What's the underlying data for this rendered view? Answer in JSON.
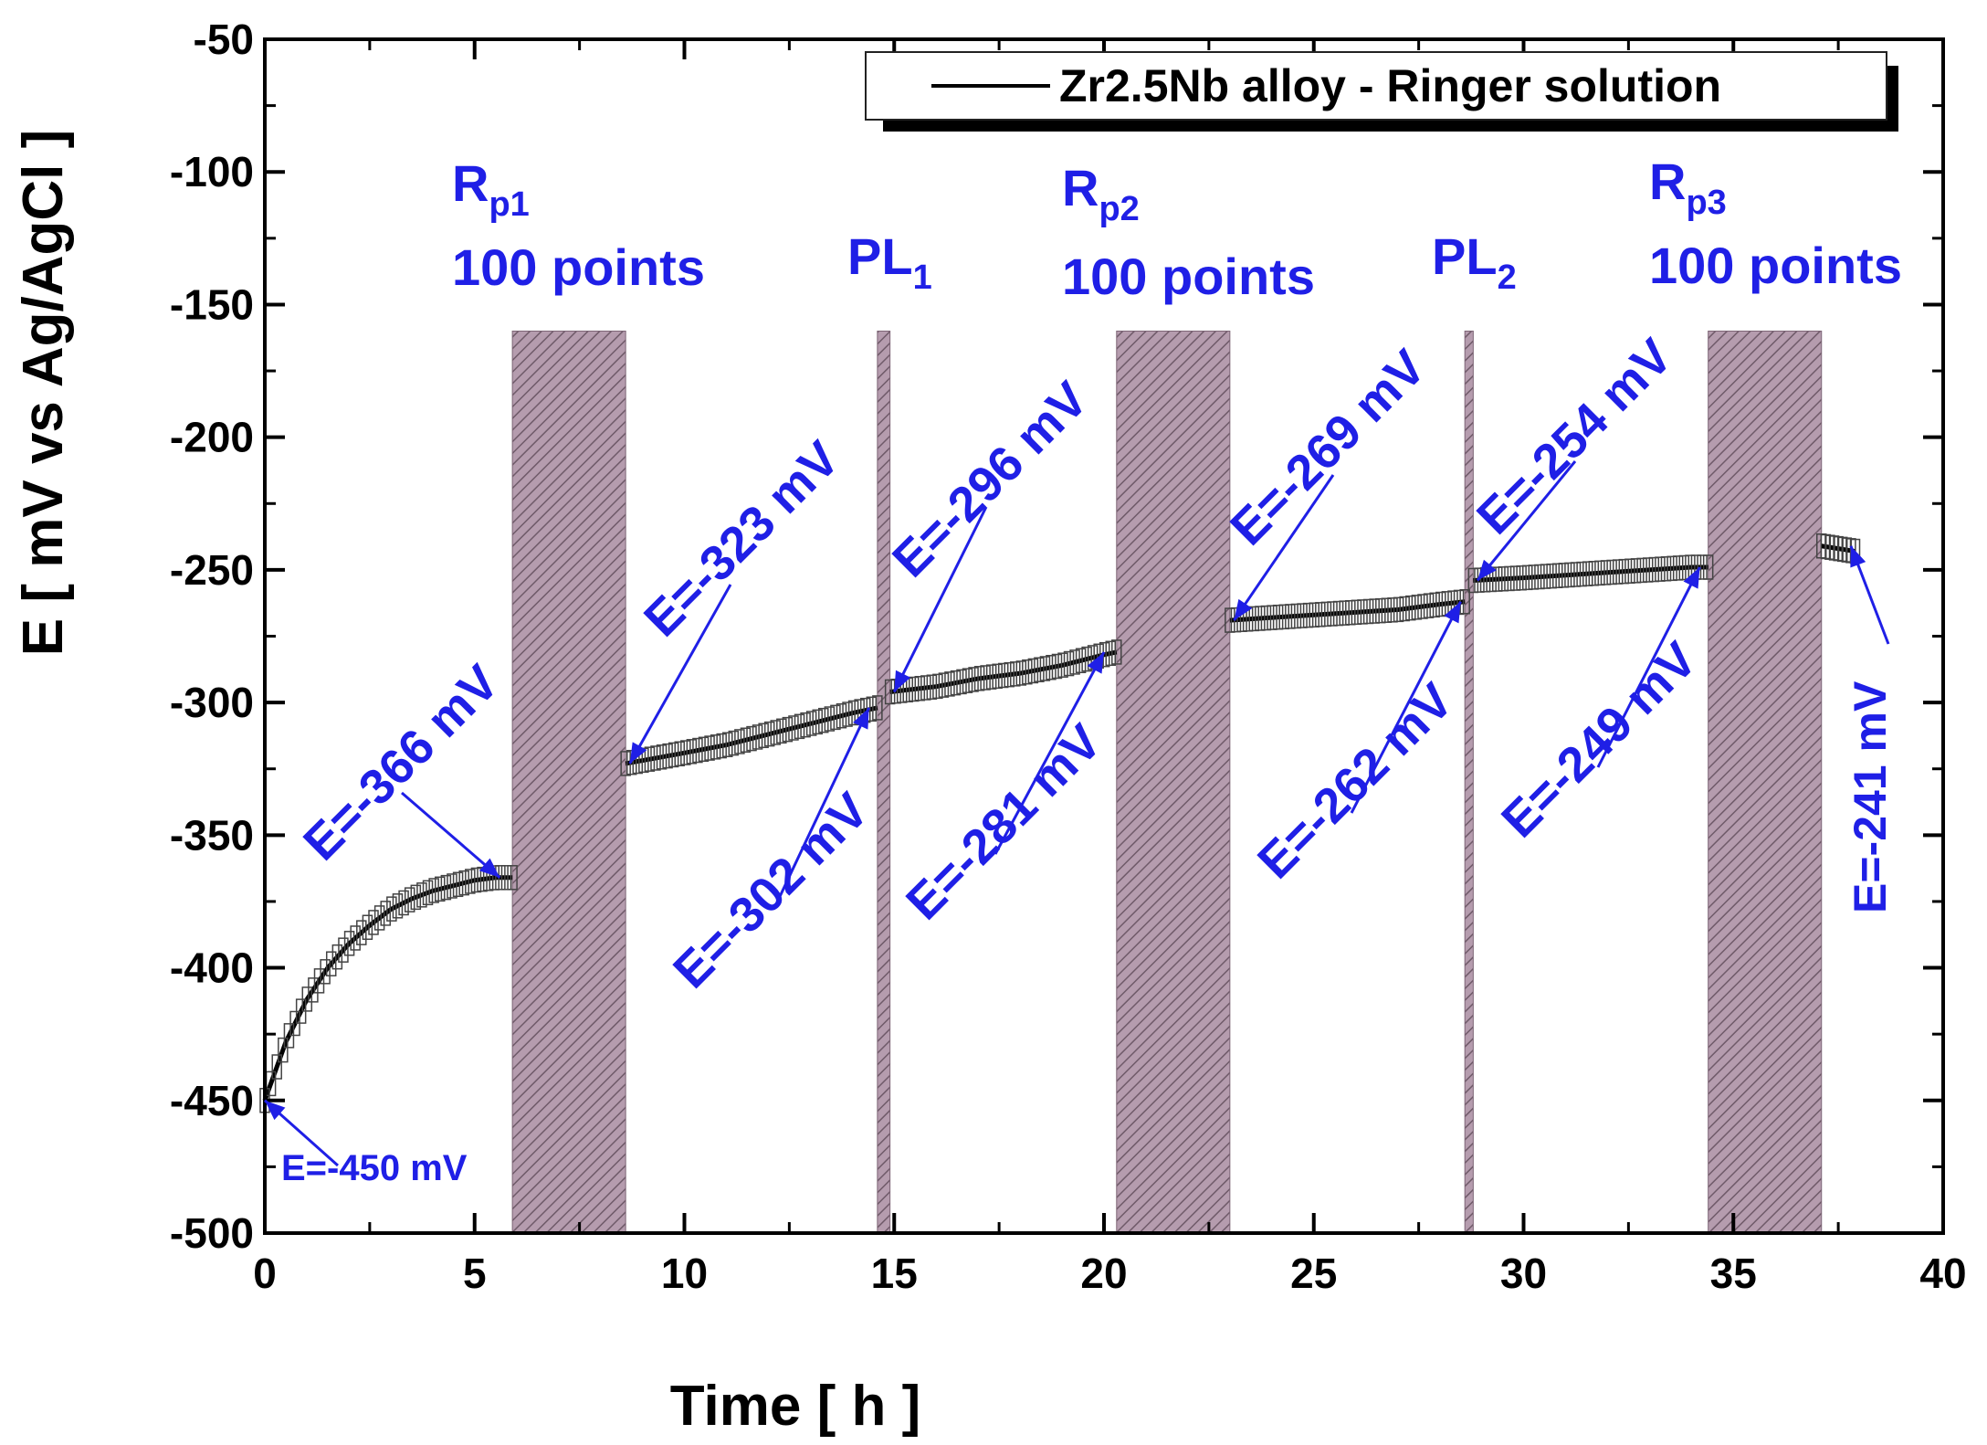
{
  "chart_data": {
    "type": "line",
    "title": "",
    "xlabel": "Time [ h ]",
    "ylabel": "E [ mV vs Ag/AgCl ]",
    "xlim": [
      0,
      40
    ],
    "ylim": [
      -500,
      -50
    ],
    "xticks": [
      0,
      5,
      10,
      15,
      20,
      25,
      30,
      35,
      40
    ],
    "yticks": [
      -50,
      -100,
      -150,
      -200,
      -250,
      -300,
      -350,
      -400,
      -450,
      -500
    ],
    "legend": {
      "label": "Zr2.5Nb alloy - Ringer solution",
      "position": "top-right"
    },
    "series": [
      {
        "name": "Zr2.5Nb alloy - Ringer solution",
        "segments": [
          {
            "x": [
              0,
              0.5,
              1,
              1.5,
              2,
              2.5,
              3,
              3.5,
              4,
              4.5,
              5,
              5.5,
              5.9
            ],
            "y": [
              -450,
              -428,
              -412,
              -400,
              -391,
              -384,
              -378,
              -374,
              -371,
              -369,
              -367,
              -366,
              -366
            ]
          },
          {
            "x": [
              8.6,
              10,
              11,
              12,
              13,
              14,
              14.6
            ],
            "y": [
              -323,
              -319,
              -316,
              -312,
              -308,
              -304,
              -302
            ]
          },
          {
            "x": [
              14.9,
              16,
              17,
              18,
              19,
              20,
              20.3
            ],
            "y": [
              -296,
              -294,
              -291,
              -289,
              -286,
              -282,
              -281
            ]
          },
          {
            "x": [
              23,
              24,
              25,
              26,
              27,
              28,
              28.6
            ],
            "y": [
              -269,
              -268,
              -267,
              -266,
              -265,
              -263,
              -262
            ]
          },
          {
            "x": [
              28.8,
              30,
              31,
              32,
              33,
              34,
              34.4
            ],
            "y": [
              -254,
              -253,
              -252,
              -251,
              -250,
              -249,
              -249
            ]
          },
          {
            "x": [
              37.1,
              37.5,
              37.9
            ],
            "y": [
              -241,
              -242,
              -243
            ]
          }
        ]
      }
    ],
    "measurement_blocks": [
      {
        "label": "R",
        "sub": "p1",
        "detail": "100 points",
        "x_start": 5.9,
        "x_end": 8.6
      },
      {
        "label": "PL",
        "sub": "1",
        "detail": "",
        "x_start": 14.6,
        "x_end": 14.9
      },
      {
        "label": "R",
        "sub": "p2",
        "detail": "100 points",
        "x_start": 20.3,
        "x_end": 23.0
      },
      {
        "label": "PL",
        "sub": "2",
        "detail": "",
        "x_start": 28.6,
        "x_end": 28.8
      },
      {
        "label": "R",
        "sub": "p3",
        "detail": "100 points",
        "x_start": 34.4,
        "x_end": 37.1
      }
    ],
    "annotations": [
      {
        "text": "E=-450 mV",
        "x": 0,
        "y": -450
      },
      {
        "text": "E=-366 mV",
        "x": 5.6,
        "y": -366
      },
      {
        "text": "E=-323 mV",
        "x": 8.7,
        "y": -323
      },
      {
        "text": "E=-302 mV",
        "x": 14.4,
        "y": -302
      },
      {
        "text": "E=-296 mV",
        "x": 15.0,
        "y": -296
      },
      {
        "text": "E=-281 mV",
        "x": 20.0,
        "y": -281
      },
      {
        "text": "E=-269 mV",
        "x": 23.1,
        "y": -269
      },
      {
        "text": "E=-262 mV",
        "x": 28.5,
        "y": -262
      },
      {
        "text": "E=-254 mV",
        "x": 28.9,
        "y": -254
      },
      {
        "text": "E=-249 mV",
        "x": 34.2,
        "y": -249
      },
      {
        "text": "E=-241 mV",
        "x": 37.8,
        "y": -241
      }
    ]
  },
  "colors": {
    "annotation": "#1f1fe6",
    "block_fill": "#a88fa0",
    "block_hatch": "#7d6576",
    "series": "#000000"
  }
}
